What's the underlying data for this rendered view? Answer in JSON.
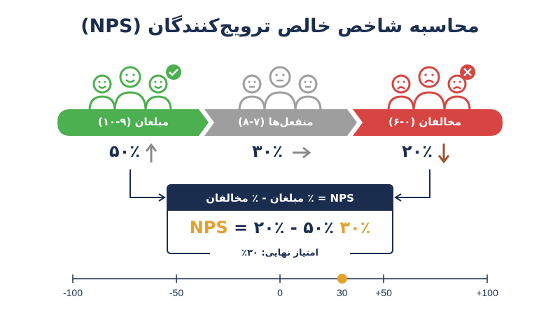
{
  "title": "محاسبه شاخص خالص ترویج‌کنندگان (NPS)",
  "groups": [
    {
      "id": "promoters",
      "label": "مبلغان (۹-۱۰)",
      "percent": "۵۰٪",
      "trend": "up",
      "color": "#4caf50",
      "icon": "checkmark-icon"
    },
    {
      "id": "passives",
      "label": "منفعل‌ها (۷-۸)",
      "percent": "۳۰٪",
      "trend": "right",
      "color": "#9e9e9e",
      "icon": "neutral-face-icon"
    },
    {
      "id": "detractors",
      "label": "مخالفان (۰-۶)",
      "percent": "۲۰٪",
      "trend": "down",
      "color": "#d64541",
      "icon": "cross-icon"
    }
  ],
  "formula": {
    "header": "NPS = ٪ مبلغان - ٪ مخالفان",
    "result": "۳۰٪ NPS",
    "equation": " = ۲۰٪ - ۵۰٪"
  },
  "final_score_label": "امتیاز نهایی: ۳۰٪",
  "scale": {
    "ticks": [
      "-100",
      "-50",
      "0",
      "30",
      "+50",
      "+100"
    ],
    "min": -100,
    "max": 100,
    "marker_value": 30,
    "marker_color": "#e3a02b"
  },
  "colors": {
    "navy": "#1b2d4f",
    "accent": "#e3a02b",
    "arrow_up": "#8a8a8a",
    "arrow_right": "#8a8a8a",
    "arrow_down": "#a0522d"
  }
}
